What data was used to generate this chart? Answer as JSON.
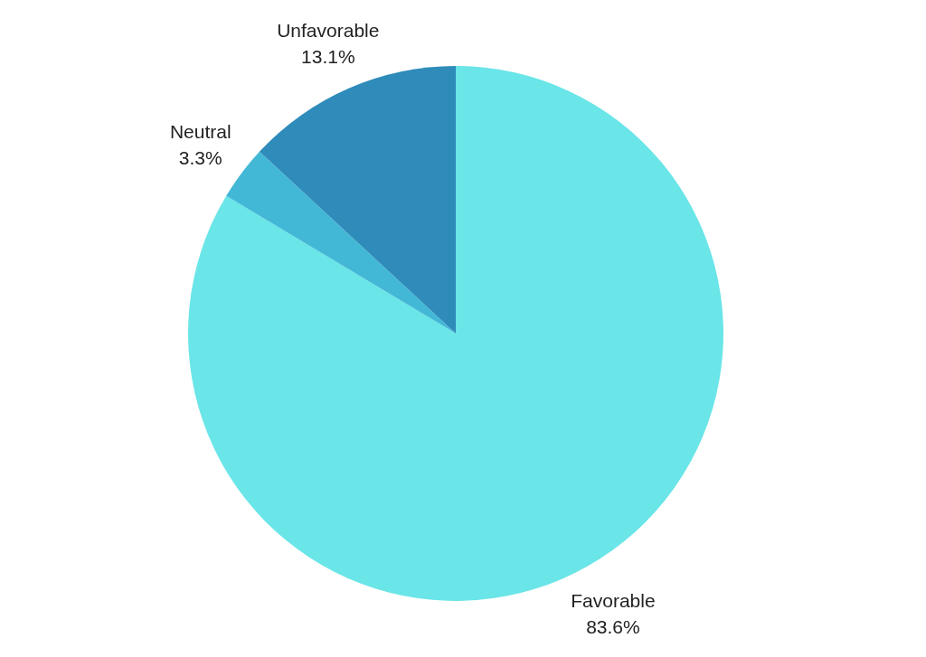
{
  "chart_data": {
    "type": "pie",
    "categories": [
      "Favorable",
      "Neutral",
      "Unfavorable"
    ],
    "values": [
      83.6,
      3.3,
      13.1
    ],
    "colors": [
      "#6ae5e8",
      "#42b8d6",
      "#2e8bba"
    ],
    "value_labels": [
      "83.6%",
      "3.3%",
      "13.1%"
    ],
    "legend": false
  }
}
